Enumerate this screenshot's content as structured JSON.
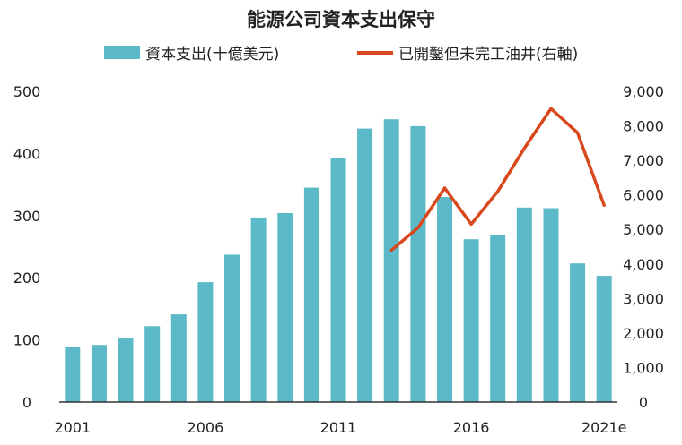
{
  "chart_data": {
    "type": "bar",
    "title": "能源公司資本支出保守",
    "colors": {
      "bar": "#5bb9c8",
      "line": "#d9481c"
    },
    "x_tick_labels": [
      "2001",
      "2006",
      "2011",
      "2016",
      "2021e"
    ],
    "categories": [
      "2001",
      "2002",
      "2003",
      "2004",
      "2005",
      "2006",
      "2007",
      "2008",
      "2009",
      "2010",
      "2011",
      "2012",
      "2013",
      "2014",
      "2015",
      "2016",
      "2017",
      "2018",
      "2019",
      "2020",
      "2021e"
    ],
    "y_left": {
      "ylim": [
        0,
        500
      ],
      "ticks": [
        "0",
        "100",
        "200",
        "300",
        "400",
        "500"
      ]
    },
    "y_right": {
      "ylim": [
        0,
        9000
      ],
      "ticks": [
        "0",
        "1,000",
        "2,000",
        "3,000",
        "4,000",
        "5,000",
        "6,000",
        "7,000",
        "8,000",
        "9,000"
      ]
    },
    "series": [
      {
        "name": "資本支出(十億美元)",
        "type": "bar",
        "axis": "left",
        "values": [
          88,
          92,
          103,
          122,
          141,
          193,
          237,
          297,
          304,
          345,
          392,
          440,
          455,
          444,
          330,
          262,
          269,
          313,
          312,
          223,
          203
        ]
      },
      {
        "name": "已開鑿但未完工油井(右軸)",
        "type": "line",
        "axis": "right",
        "x": [
          "2013",
          "2014",
          "2015",
          "2016",
          "2017",
          "2018",
          "2019",
          "2020",
          "2021e"
        ],
        "values": [
          4400,
          5050,
          6200,
          5150,
          6100,
          7350,
          8500,
          7800,
          5700
        ]
      }
    ]
  }
}
